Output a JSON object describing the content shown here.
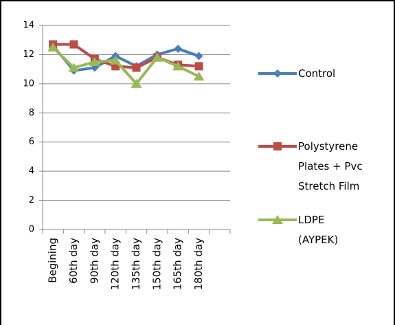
{
  "chart_data": {
    "type": "line",
    "categories": [
      "Begining",
      "60th day",
      "90th day",
      "120th day",
      "135th day",
      "150th day",
      "165th day",
      "180th day",
      null
    ],
    "series": [
      {
        "name": "Control",
        "color": "#4a7ebb",
        "marker": "diamond",
        "values": [
          12.6,
          10.9,
          11.1,
          11.9,
          11.2,
          12.0,
          12.4,
          11.9,
          null
        ]
      },
      {
        "name": "Polystyrene\nPlates + Pvc\nStretch Film",
        "color": "#be4b48",
        "marker": "square",
        "values": [
          12.7,
          12.7,
          11.7,
          11.2,
          11.1,
          11.8,
          11.3,
          11.2,
          null
        ]
      },
      {
        "name": "LDPE\n(AYPEK)",
        "color": "#98b954",
        "marker": "triangle",
        "values": [
          12.5,
          11.1,
          11.5,
          11.6,
          10.0,
          11.8,
          11.2,
          10.5,
          null
        ]
      }
    ],
    "ylim": [
      0,
      14
    ],
    "yticks": [
      0,
      2,
      4,
      6,
      8,
      10,
      12,
      14
    ],
    "grid": true,
    "legend": "right"
  }
}
